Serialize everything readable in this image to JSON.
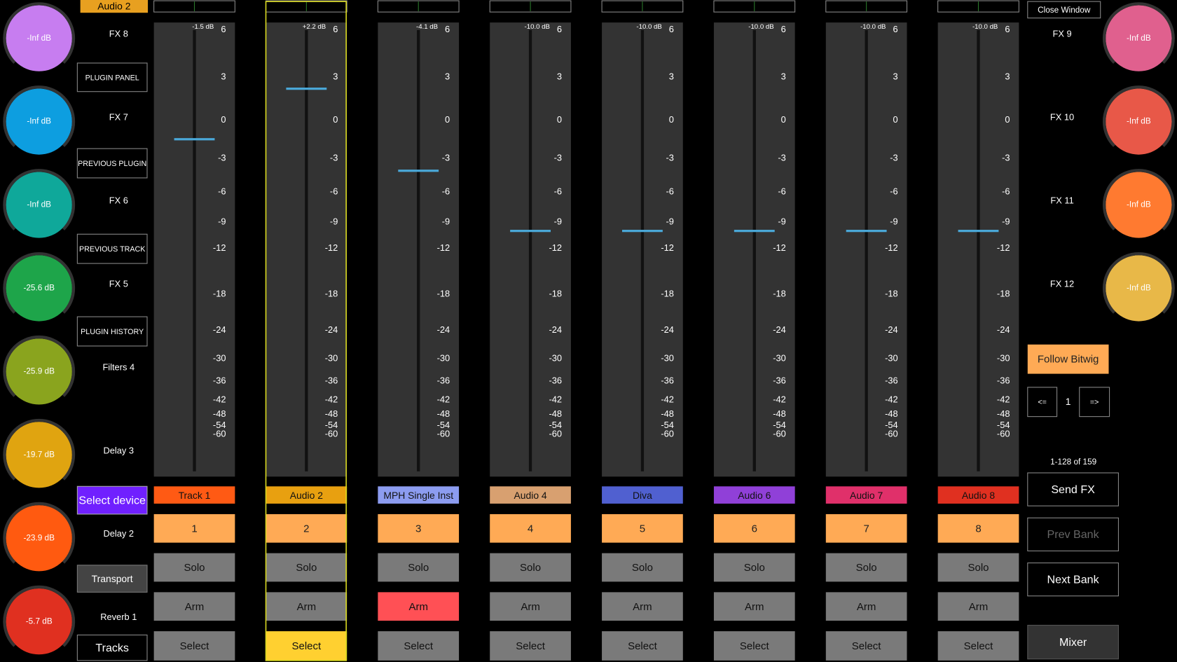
{
  "header": {
    "track": "Audio 2"
  },
  "left_knobs": [
    {
      "name": "FX 8",
      "value": "-Inf dB",
      "color": "#c77df0"
    },
    {
      "name": "FX 7",
      "value": "-Inf dB",
      "color": "#0d9ee0"
    },
    {
      "name": "FX 6",
      "value": "-Inf dB",
      "color": "#0fa89a"
    },
    {
      "name": "FX 5",
      "value": "-25.6 dB",
      "color": "#1ea54a"
    },
    {
      "name": "Filters 4",
      "value": "-25.9 dB",
      "color": "#8aa41e"
    },
    {
      "name": "Delay 3",
      "value": "-19.7 dB",
      "color": "#e0a410"
    },
    {
      "name": "Delay 2",
      "value": "-23.9 dB",
      "color": "#ff5a10"
    },
    {
      "name": "Reverb 1",
      "value": "-5.7 dB",
      "color": "#e03020"
    }
  ],
  "left_buttons": [
    "PLUGIN PANEL",
    "PREVIOUS PLUGIN",
    "PREVIOUS TRACK",
    "PLUGIN HISTORY",
    "Select device",
    "Transport",
    "Tracks"
  ],
  "scale": [
    6,
    3,
    0,
    -3,
    -6,
    -9,
    -12,
    -18,
    -24,
    -30,
    -36,
    -42,
    -48,
    -54,
    -60
  ],
  "channels": [
    {
      "level": -1.5,
      "level_label": "-1.5 dB",
      "name": "Track 1",
      "color": "#ff5a14",
      "number": 1,
      "solo": "Solo",
      "arm": "Arm",
      "select": "Select"
    },
    {
      "level": 2.2,
      "level_label": "+2.2 dB",
      "name": "Audio 2",
      "color": "#e8a010",
      "number": 2,
      "solo": "Solo",
      "arm": "Arm",
      "select": "Select",
      "selected": true
    },
    {
      "level": -4.1,
      "level_label": "-4.1 dB",
      "name": "MPH Single Inst",
      "color": "#8c9cf0",
      "number": 3,
      "solo": "Solo",
      "arm": "Arm",
      "select": "Select",
      "armed": true
    },
    {
      "level": -10.0,
      "level_label": "-10.0 dB",
      "name": "Audio 4",
      "color": "#d8a070",
      "number": 4,
      "solo": "Solo",
      "arm": "Arm",
      "select": "Select"
    },
    {
      "level": -10.0,
      "level_label": "-10.0 dB",
      "name": "Diva",
      "color": "#5060d0",
      "number": 5,
      "solo": "Solo",
      "arm": "Arm",
      "select": "Select"
    },
    {
      "level": -10.0,
      "level_label": "-10.0 dB",
      "name": "Audio 6",
      "color": "#9040d8",
      "number": 6,
      "solo": "Solo",
      "arm": "Arm",
      "select": "Select"
    },
    {
      "level": -10.0,
      "level_label": "-10.0 dB",
      "name": "Audio 7",
      "color": "#e0306a",
      "number": 7,
      "solo": "Solo",
      "arm": "Arm",
      "select": "Select"
    },
    {
      "level": -10.0,
      "level_label": "-10.0 dB",
      "name": "Audio 8",
      "color": "#e03020",
      "number": 8,
      "solo": "Solo",
      "arm": "Arm",
      "select": "Select"
    }
  ],
  "right_knobs": [
    {
      "name": "FX 9",
      "value": "-Inf dB",
      "color": "#e0608e"
    },
    {
      "name": "FX 10",
      "value": "-Inf dB",
      "color": "#e85848"
    },
    {
      "name": "FX 11",
      "value": "-Inf dB",
      "color": "#ff7a30"
    },
    {
      "name": "FX 12",
      "value": "-Inf dB",
      "color": "#e8b848"
    }
  ],
  "right_panel": {
    "close": "Close Window",
    "follow": "Follow Bitwig",
    "prev": "<=",
    "page": "1",
    "next": "=>",
    "range": "1-128 of 159",
    "send_fx": "Send FX",
    "prev_bank": "Prev Bank",
    "next_bank": "Next Bank",
    "mixer": "Mixer"
  }
}
